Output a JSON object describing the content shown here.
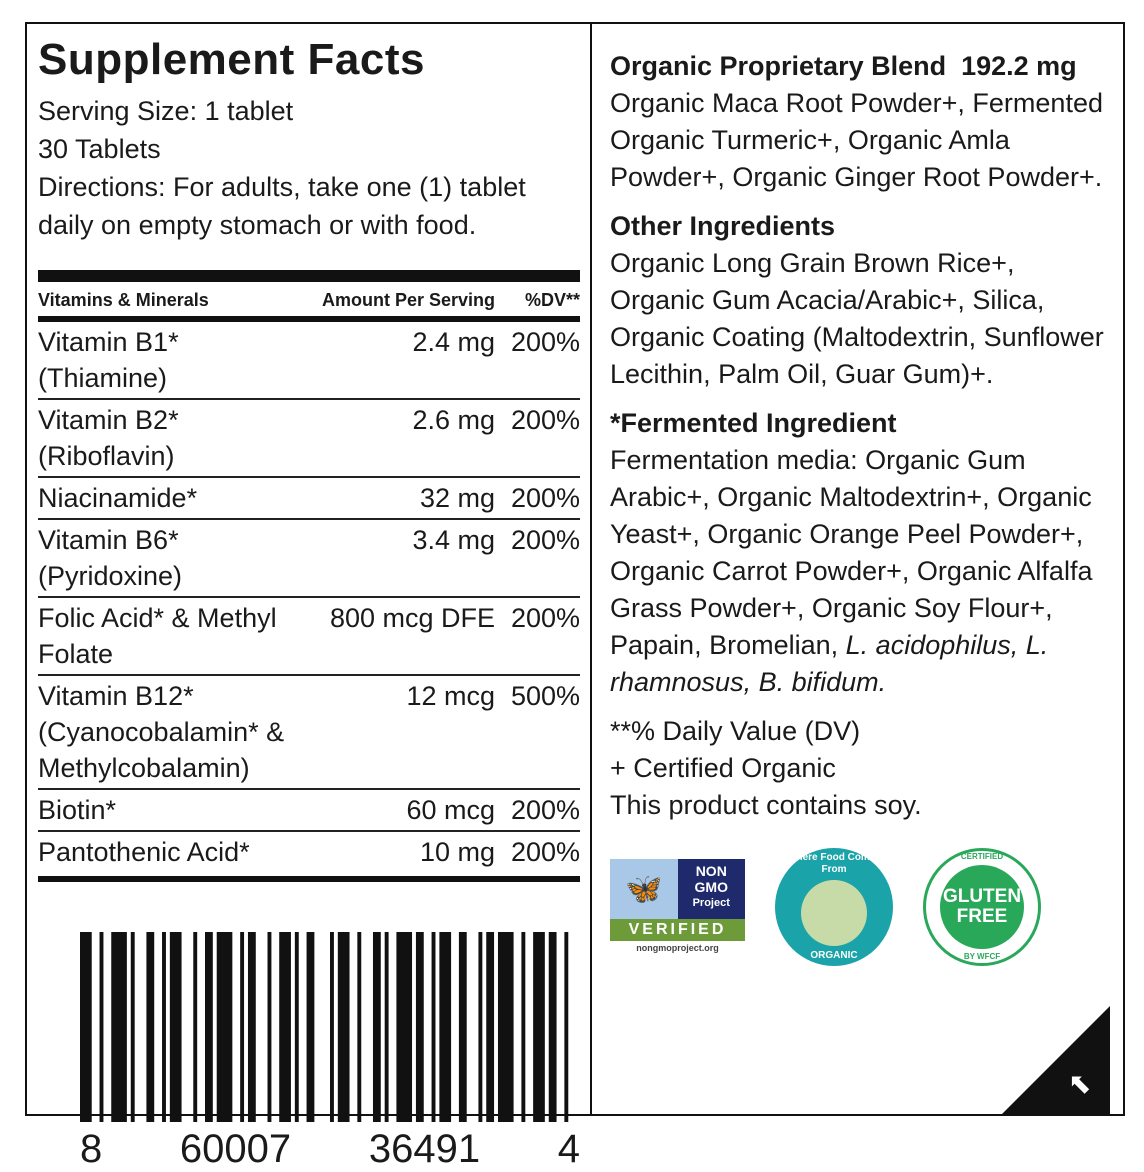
{
  "title": "Supplement Facts",
  "intro": [
    "Serving Size: 1 tablet",
    "30 Tablets",
    "Directions: For adults, take one (1) tablet daily on empty stomach or with food."
  ],
  "table": {
    "headers": [
      "Vitamins & Minerals",
      "Amount Per Serving",
      "%DV**"
    ],
    "rows": [
      [
        "Vitamin B1* (Thiamine)",
        "2.4 mg",
        "200%"
      ],
      [
        "Vitamin B2* (Riboflavin)",
        "2.6 mg",
        "200%"
      ],
      [
        "Niacinamide*",
        "32 mg",
        "200%"
      ],
      [
        "Vitamin B6* (Pyridoxine)",
        "3.4 mg",
        "200%"
      ],
      [
        "Folic Acid* & Methyl Folate",
        "800 mcg DFE",
        "200%"
      ],
      [
        "Vitamin B12* (Cyanocobalamin* & Methylcobalamin)",
        "12 mcg",
        "500%"
      ],
      [
        "Biotin*",
        "60 mcg",
        "200%"
      ],
      [
        "Pantothenic Acid*",
        "10 mg",
        "200%"
      ]
    ]
  },
  "barcode": {
    "digits": [
      "8",
      "60007",
      "36491",
      "4"
    ]
  },
  "right": {
    "blend_title": "Organic Proprietary Blend",
    "blend_amount": "192.2 mg",
    "blend_text": "Organic Maca Root Powder+, Fermented Organic Turmeric+, Organic Amla Powder+, Organic Ginger Root Powder+.",
    "other_title": "Other Ingredients",
    "other_text": "Organic Long Grain Brown Rice+, Organic Gum Acacia/Arabic+, Silica, Organic Coating (Maltodextrin, Sunflower Lecithin, Palm Oil, Guar Gum)+.",
    "ferm_title": "*Fermented Ingredient",
    "ferm_text": "Fermentation media: Organic Gum Arabic+, Organic Maltodextrin+, Organic Yeast+, Organic Orange Peel Powder+, Organic Carrot Powder+, Organic Alfalfa Grass Powder+, Organic Soy Flour+, Papain, Bromelian,",
    "ferm_italic": "L. acidophilus, L. rhamnosus, B. bifidum.",
    "notes": [
      "**% Daily Value (DV)",
      "+ Certified Organic",
      "This product contains soy."
    ]
  },
  "logos": {
    "nongmo": [
      "NON",
      "GMO",
      "Project",
      "VERIFIED",
      "nongmoproject.org"
    ],
    "organic": [
      "Where Food Comes From",
      "ORGANIC"
    ],
    "gluten": [
      "CERTIFIED",
      "GLUTEN FREE",
      "BY WFCF"
    ]
  },
  "colors": {
    "nongmo_blue": "#1e2a6b",
    "organic_teal": "#1aa3a8",
    "gluten_green": "#2aa85a"
  }
}
